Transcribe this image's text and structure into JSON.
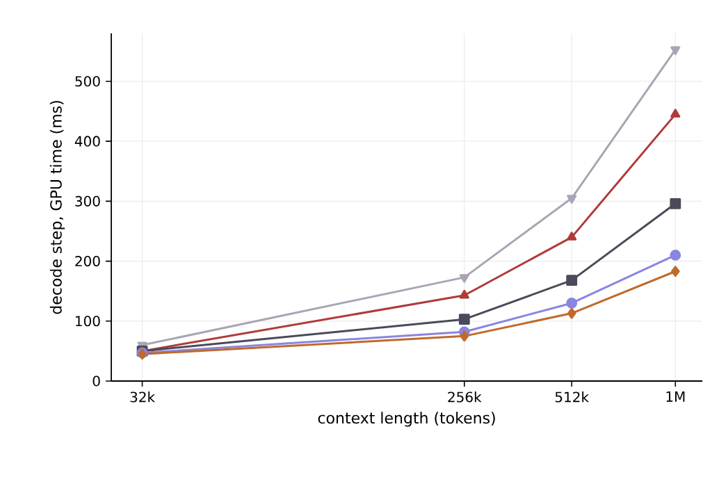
{
  "chart_data": {
    "type": "line",
    "xlabel": "context length (tokens)",
    "ylabel": "decode step, GPU time (ms)",
    "x": [
      32000,
      256000,
      512000,
      1000000
    ],
    "log": "x",
    "grid": true,
    "line_style": "solid",
    "xlim": [
      26200,
      1190000
    ],
    "xticks": [
      {
        "value": 32000,
        "label": "32k"
      },
      {
        "value": 256000,
        "label": "256k"
      },
      {
        "value": 512000,
        "label": "512k"
      },
      {
        "value": 1000000,
        "label": "1M"
      }
    ],
    "ylim": [
      0,
      580
    ],
    "yticks": [
      0,
      100,
      200,
      300,
      400,
      500
    ],
    "series": [
      {
        "color": "#a8a6b4",
        "marker": "triangle_down",
        "values": [
          60,
          173,
          305,
          553
        ]
      },
      {
        "color": "#b03a3a",
        "marker": "triangle",
        "values": [
          50,
          143,
          240,
          445
        ]
      },
      {
        "color": "#4a4a5a",
        "marker": "square",
        "values": [
          50,
          103,
          168,
          296
        ]
      },
      {
        "color": "#8a85e0",
        "marker": "circle",
        "values": [
          47,
          82,
          130,
          210
        ]
      },
      {
        "color": "#c06a2a",
        "marker": "diamond",
        "values": [
          45,
          75,
          113,
          183
        ]
      }
    ]
  }
}
